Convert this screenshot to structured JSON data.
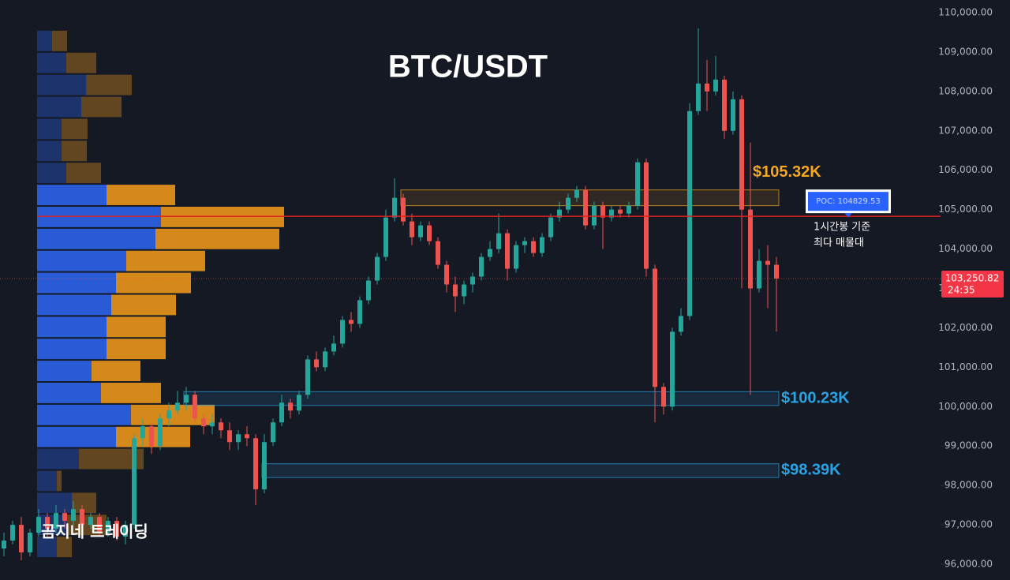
{
  "chart_data": {
    "type": "candlestick",
    "title": "BTC/USDT",
    "watermark": "곰지네 트레이딩",
    "ylim": [
      95600,
      110320
    ],
    "yticks": [
      {
        "value": 96000,
        "label": "96,000.00"
      },
      {
        "value": 97000,
        "label": "97,000.00"
      },
      {
        "value": 98000,
        "label": "98,000.00"
      },
      {
        "value": 99000,
        "label": "99,000.00"
      },
      {
        "value": 100000,
        "label": "100,000.00"
      },
      {
        "value": 101000,
        "label": "101,000.00"
      },
      {
        "value": 102000,
        "label": "102,000.00"
      },
      {
        "value": 103000,
        "label": "103,000.00"
      },
      {
        "value": 104000,
        "label": "104,000.00"
      },
      {
        "value": 105000,
        "label": "105,000.00"
      },
      {
        "value": 106000,
        "label": "106,000.00"
      },
      {
        "value": 107000,
        "label": "107,000.00"
      },
      {
        "value": 108000,
        "label": "108,000.00"
      },
      {
        "value": 109000,
        "label": "109,000.00"
      },
      {
        "value": 110000,
        "label": "110,000.00"
      }
    ],
    "up_color": "#26a69a",
    "down_color": "#ef5350",
    "candles": [
      [
        96400,
        96800,
        96200,
        96600
      ],
      [
        96600,
        97100,
        96500,
        97000
      ],
      [
        97000,
        97200,
        96100,
        96300
      ],
      [
        96300,
        96900,
        96200,
        96800
      ],
      [
        96800,
        97400,
        96700,
        97200
      ],
      [
        97200,
        97300,
        96700,
        96900
      ],
      [
        96900,
        97500,
        96800,
        97300
      ],
      [
        97300,
        97400,
        96900,
        97100
      ],
      [
        97100,
        97600,
        97000,
        97400
      ],
      [
        97400,
        97500,
        96800,
        97000
      ],
      [
        97000,
        97300,
        96900,
        97200
      ],
      [
        97200,
        97300,
        96700,
        96800
      ],
      [
        96800,
        97200,
        96700,
        97100
      ],
      [
        97100,
        97200,
        96600,
        96700
      ],
      [
        96700,
        97100,
        96500,
        97000
      ],
      [
        97000,
        99300,
        96900,
        99200
      ],
      [
        99200,
        99700,
        99000,
        99500
      ],
      [
        99500,
        99600,
        98800,
        99000
      ],
      [
        99000,
        99800,
        98900,
        99700
      ],
      [
        99700,
        100100,
        99500,
        99900
      ],
      [
        99900,
        100400,
        99800,
        100100
      ],
      [
        100100,
        100500,
        99900,
        100300
      ],
      [
        100300,
        100400,
        99600,
        99700
      ],
      [
        99700,
        99800,
        99300,
        99500
      ],
      [
        99500,
        99800,
        99300,
        99600
      ],
      [
        99600,
        99700,
        99200,
        99400
      ],
      [
        99400,
        99600,
        98900,
        99100
      ],
      [
        99100,
        99400,
        98900,
        99300
      ],
      [
        99300,
        99500,
        99000,
        99200
      ],
      [
        99200,
        99300,
        97500,
        97900
      ],
      [
        97900,
        99300,
        97800,
        99100
      ],
      [
        99100,
        99700,
        99000,
        99600
      ],
      [
        99600,
        100300,
        99500,
        100100
      ],
      [
        100100,
        100200,
        99700,
        99900
      ],
      [
        99900,
        100400,
        99800,
        100300
      ],
      [
        100300,
        101300,
        100200,
        101200
      ],
      [
        101200,
        101400,
        100900,
        101000
      ],
      [
        101000,
        101500,
        100900,
        101400
      ],
      [
        101400,
        101800,
        101300,
        101600
      ],
      [
        101600,
        102300,
        101500,
        102200
      ],
      [
        102200,
        102400,
        101900,
        102100
      ],
      [
        102100,
        102800,
        102000,
        102700
      ],
      [
        102700,
        103300,
        102600,
        103200
      ],
      [
        103200,
        103900,
        103100,
        103800
      ],
      [
        103800,
        105000,
        103700,
        104800
      ],
      [
        104800,
        105800,
        104700,
        105300
      ],
      [
        105300,
        105400,
        104600,
        104700
      ],
      [
        104700,
        104900,
        104100,
        104300
      ],
      [
        104300,
        104700,
        104200,
        104600
      ],
      [
        104600,
        104700,
        104100,
        104200
      ],
      [
        104200,
        104300,
        103500,
        103600
      ],
      [
        103600,
        103700,
        102900,
        103100
      ],
      [
        103100,
        103300,
        102400,
        102800
      ],
      [
        102800,
        103200,
        102600,
        103100
      ],
      [
        103100,
        103400,
        102900,
        103300
      ],
      [
        103300,
        103900,
        103200,
        103800
      ],
      [
        103800,
        104200,
        103700,
        104000
      ],
      [
        104000,
        104900,
        103900,
        104400
      ],
      [
        104400,
        104500,
        103200,
        103500
      ],
      [
        103500,
        104200,
        103400,
        104100
      ],
      [
        104100,
        104300,
        103900,
        104200
      ],
      [
        104200,
        104300,
        103800,
        103900
      ],
      [
        103900,
        104400,
        103800,
        104300
      ],
      [
        104300,
        104900,
        104200,
        104800
      ],
      [
        104800,
        105200,
        104700,
        105000
      ],
      [
        105000,
        105400,
        104900,
        105300
      ],
      [
        105300,
        105600,
        105200,
        105500
      ],
      [
        105500,
        105600,
        104500,
        104600
      ],
      [
        104600,
        105200,
        104500,
        105100
      ],
      [
        105100,
        105200,
        104000,
        104800
      ],
      [
        104800,
        105100,
        104700,
        105000
      ],
      [
        105000,
        105100,
        104800,
        104900
      ],
      [
        104900,
        105200,
        104800,
        105100
      ],
      [
        105100,
        106300,
        105000,
        106200
      ],
      [
        106200,
        106300,
        103300,
        103500
      ],
      [
        103500,
        103600,
        99600,
        100500
      ],
      [
        100500,
        100600,
        99800,
        100000
      ],
      [
        100000,
        102000,
        99900,
        101900
      ],
      [
        101900,
        102500,
        101800,
        102300
      ],
      [
        102300,
        107700,
        102200,
        107500
      ],
      [
        107500,
        109600,
        107400,
        108200
      ],
      [
        108200,
        108800,
        107500,
        108000
      ],
      [
        108000,
        108900,
        107900,
        108300
      ],
      [
        108300,
        108400,
        106800,
        107000
      ],
      [
        107000,
        108000,
        106900,
        107800
      ],
      [
        107800,
        107900,
        103000,
        105000
      ],
      [
        105000,
        106700,
        100300,
        103000
      ],
      [
        103000,
        104000,
        102900,
        103700
      ],
      [
        103700,
        104100,
        102500,
        103600
      ],
      [
        103600,
        103800,
        101900,
        103250.82
      ]
    ],
    "last_price": {
      "value": 103250.82,
      "label": "103,250.82"
    },
    "countdown": "24:35",
    "poc": {
      "value": 104829.53,
      "label": "POC: 104829.53",
      "note": [
        "1시간봉 기준",
        "최다 매물대"
      ]
    },
    "zones": [
      {
        "label": "$105.32K",
        "low": 105100,
        "high": 105500,
        "start_index": 46,
        "color": "#f5a623"
      },
      {
        "label": "$100.23K",
        "low": 100030,
        "high": 100380,
        "start_index": 21,
        "color": "#29a3e6"
      },
      {
        "label": "$98.39K",
        "low": 98200,
        "high": 98550,
        "start_index": 30,
        "color": "#29a3e6"
      }
    ],
    "volume_profile": {
      "range": [
        96160,
        109560
      ],
      "value_area_rows": [
        7,
        18
      ],
      "buy_color": "#2a5bd7",
      "sell_color": "#d4891a",
      "rows": [
        {
          "buy": 19,
          "sell": 19
        },
        {
          "buy": 37,
          "sell": 38
        },
        {
          "buy": 62,
          "sell": 58
        },
        {
          "buy": 56,
          "sell": 51
        },
        {
          "buy": 31,
          "sell": 33
        },
        {
          "buy": 31,
          "sell": 32
        },
        {
          "buy": 37,
          "sell": 44
        },
        {
          "buy": 88,
          "sell": 87
        },
        {
          "buy": 157,
          "sell": 156
        },
        {
          "buy": 150,
          "sell": 157
        },
        {
          "buy": 113,
          "sell": 100
        },
        {
          "buy": 100,
          "sell": 95
        },
        {
          "buy": 94,
          "sell": 82
        },
        {
          "buy": 88,
          "sell": 75
        },
        {
          "buy": 88,
          "sell": 75
        },
        {
          "buy": 69,
          "sell": 62
        },
        {
          "buy": 81,
          "sell": 76
        },
        {
          "buy": 119,
          "sell": 106
        },
        {
          "buy": 100,
          "sell": 94
        },
        {
          "buy": 53,
          "sell": 82
        },
        {
          "buy": 25,
          "sell": 6
        },
        {
          "buy": 44,
          "sell": 31
        },
        {
          "buy": 38,
          "sell": 50
        },
        {
          "buy": 25,
          "sell": 19
        }
      ]
    }
  }
}
